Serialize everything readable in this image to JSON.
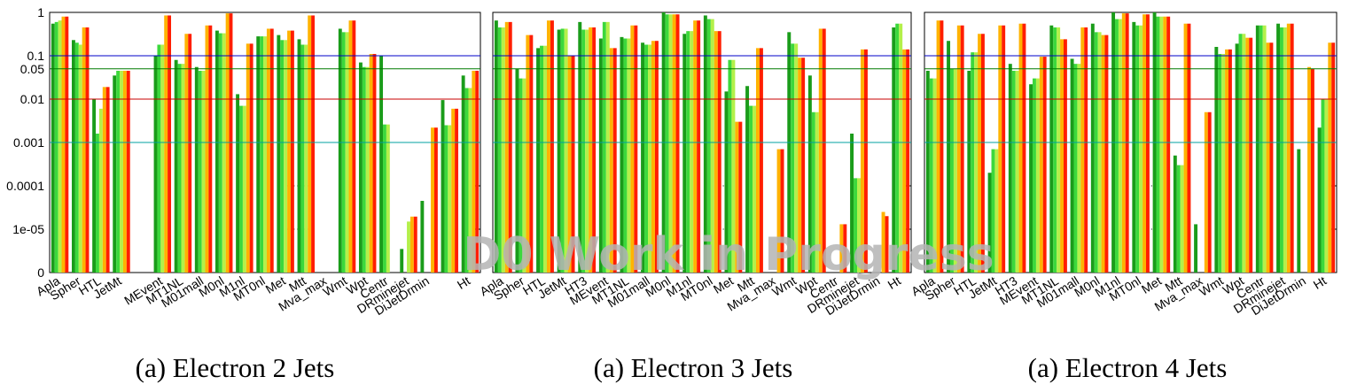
{
  "chart_data": [
    {
      "type": "bar",
      "title": "",
      "caption": "(a) Electron 2 Jets",
      "yscale": "log",
      "ylim": [
        "0",
        1
      ],
      "yticks": [
        "1",
        "0.1",
        "0.05",
        "0.01",
        "0.001",
        "0.0001",
        "1e-05",
        "0"
      ],
      "reference_lines": [
        0.1,
        0.05,
        0.01,
        0.001
      ],
      "series_names": [
        "dark green",
        "green",
        "light green",
        "orange",
        "red"
      ],
      "categories": [
        {
          "label": "Apla",
          "values": [
            0.55,
            0.6,
            0.65,
            0.8,
            0.8
          ]
        },
        {
          "label": "Spher",
          "values": [
            0.23,
            0.2,
            0.18,
            0.45,
            0.45
          ]
        },
        {
          "label": "HTL",
          "values": [
            0.01,
            0.0016,
            0.006,
            0.019,
            0.019
          ]
        },
        {
          "label": "JetMt",
          "values": [
            0.035,
            0.045,
            0.045,
            0.045,
            0.045
          ]
        },
        {
          "label": "",
          "values": [
            0,
            0,
            0,
            0,
            0
          ]
        },
        {
          "label": "MEvent",
          "values": [
            0.1,
            0.18,
            0.18,
            0.85,
            0.85
          ]
        },
        {
          "label": "MT1NL",
          "values": [
            0.08,
            0.065,
            0.065,
            0.32,
            0.32
          ]
        },
        {
          "label": "M01mall",
          "values": [
            0.055,
            0.045,
            0.045,
            0.5,
            0.5
          ]
        },
        {
          "label": "M0nl",
          "values": [
            0.38,
            0.33,
            0.33,
            0.95,
            0.95
          ]
        },
        {
          "label": "M1nl",
          "values": [
            0.013,
            0.007,
            0.007,
            0.19,
            0.19
          ]
        },
        {
          "label": "MT0nl",
          "values": [
            0.28,
            0.28,
            0.28,
            0.42,
            0.42
          ]
        },
        {
          "label": "Met",
          "values": [
            0.3,
            0.23,
            0.23,
            0.38,
            0.38
          ]
        },
        {
          "label": "Mtt",
          "values": [
            0.24,
            0.18,
            0.18,
            0.85,
            0.85
          ]
        },
        {
          "label": "Mva_max",
          "values": [
            0,
            0,
            0,
            0,
            0
          ]
        },
        {
          "label": "Wmt",
          "values": [
            0.42,
            0.35,
            0.35,
            0.65,
            0.65
          ]
        },
        {
          "label": "Wpt",
          "values": [
            0.07,
            0.055,
            0.055,
            0.11,
            0.11
          ]
        },
        {
          "label": "Centr",
          "values": [
            0.1,
            0.0026,
            0.0026,
            0,
            0
          ]
        },
        {
          "label": "DRminejet",
          "values": [
            3.5e-06,
            0,
            1.5e-05,
            1.95e-05,
            1.95e-05
          ]
        },
        {
          "label": "DiJetDrmin",
          "values": [
            4.5e-05,
            0,
            0,
            0.0022,
            0.0022
          ]
        },
        {
          "label": "",
          "values": [
            0.0095,
            0.0025,
            0.0025,
            0.006,
            0.006
          ]
        },
        {
          "label": "Ht",
          "values": [
            0.035,
            0.018,
            0.018,
            0.045,
            0.045
          ]
        }
      ]
    },
    {
      "type": "bar",
      "title": "",
      "caption": "(a) Electron 3 Jets",
      "yscale": "log",
      "ylim": [
        "0",
        1
      ],
      "reference_lines": [
        0.1,
        0.05,
        0.01,
        0.001
      ],
      "series_names": [
        "dark green",
        "green",
        "light green",
        "orange",
        "red"
      ],
      "categories": [
        {
          "label": "Apla",
          "values": [
            0.65,
            0.45,
            0.45,
            0.6,
            0.6
          ]
        },
        {
          "label": "Spher",
          "values": [
            0.05,
            0.03,
            0.03,
            0.3,
            0.3
          ]
        },
        {
          "label": "HTL",
          "values": [
            0.15,
            0.17,
            0.17,
            0.65,
            0.65
          ]
        },
        {
          "label": "JetMt",
          "values": [
            0.4,
            0.42,
            0.42,
            0.1,
            0.1
          ]
        },
        {
          "label": "HT3",
          "values": [
            0.6,
            0.4,
            0.4,
            0.45,
            0.45
          ]
        },
        {
          "label": "MEvent",
          "values": [
            0.25,
            0.6,
            0.6,
            0.15,
            0.15
          ]
        },
        {
          "label": "MT1NL",
          "values": [
            0.27,
            0.25,
            0.25,
            0.5,
            0.5
          ]
        },
        {
          "label": "M01mall",
          "values": [
            0.2,
            0.18,
            0.18,
            0.22,
            0.22
          ]
        },
        {
          "label": "M0nl",
          "values": [
            1,
            0.9,
            0.9,
            0.9,
            0.9
          ]
        },
        {
          "label": "M1nl",
          "values": [
            0.32,
            0.37,
            0.37,
            0.65,
            0.65
          ]
        },
        {
          "label": "MT0nl",
          "values": [
            0.85,
            0.7,
            0.7,
            0.37,
            0.37
          ]
        },
        {
          "label": "Met",
          "values": [
            0.015,
            0.08,
            0.08,
            0.003,
            0.003
          ]
        },
        {
          "label": "Mtt",
          "values": [
            0.02,
            0.007,
            0.007,
            0.15,
            0.15
          ]
        },
        {
          "label": "Mva_max",
          "values": [
            0,
            0,
            0,
            0.0007,
            0.0007
          ]
        },
        {
          "label": "Wmt",
          "values": [
            0.35,
            0.19,
            0.19,
            0.09,
            0.09
          ]
        },
        {
          "label": "Wpt",
          "values": [
            0.035,
            0.005,
            0.005,
            0.42,
            0.42
          ]
        },
        {
          "label": "Centr",
          "values": [
            0,
            0,
            0,
            1.3e-05,
            1.3e-05
          ]
        },
        {
          "label": "DRminejet",
          "values": [
            0.0016,
            0.00015,
            0.00015,
            0.14,
            0.14
          ]
        },
        {
          "label": "DiJetDrmin",
          "values": [
            0,
            0,
            0,
            2.5e-05,
            2e-05
          ]
        },
        {
          "label": "Ht",
          "values": [
            0.45,
            0.55,
            0.55,
            0.14,
            0.14
          ]
        }
      ]
    },
    {
      "type": "bar",
      "title": "",
      "caption": "(a) Electron 4 Jets",
      "yscale": "log",
      "ylim": [
        "0",
        1
      ],
      "reference_lines": [
        0.1,
        0.05,
        0.01,
        0.001
      ],
      "series_names": [
        "dark green",
        "green",
        "light green",
        "orange",
        "red"
      ],
      "categories": [
        {
          "label": "Apla",
          "values": [
            0.045,
            0.03,
            0.03,
            0.65,
            0.65
          ]
        },
        {
          "label": "Spher",
          "values": [
            0.22,
            0.05,
            0.05,
            0.5,
            0.5
          ]
        },
        {
          "label": "HTL",
          "values": [
            0.045,
            0.12,
            0.12,
            0.32,
            0.32
          ]
        },
        {
          "label": "JetMt",
          "values": [
            0.0002,
            0.0007,
            0.0007,
            0.5,
            0.5
          ]
        },
        {
          "label": "HT3",
          "values": [
            0.065,
            0.045,
            0.045,
            0.55,
            0.55
          ]
        },
        {
          "label": "MEvent",
          "values": [
            0.022,
            0.03,
            0.03,
            0.095,
            0.095
          ]
        },
        {
          "label": "MT1NL",
          "values": [
            0.5,
            0.45,
            0.45,
            0.24,
            0.24
          ]
        },
        {
          "label": "M01mall",
          "values": [
            0.085,
            0.065,
            0.065,
            0.45,
            0.45
          ]
        },
        {
          "label": "M0nl",
          "values": [
            0.55,
            0.35,
            0.35,
            0.3,
            0.3
          ]
        },
        {
          "label": "M1nl",
          "values": [
            1,
            0.7,
            0.7,
            0.95,
            0.95
          ]
        },
        {
          "label": "MT0nl",
          "values": [
            0.6,
            0.5,
            0.5,
            0.9,
            0.9
          ]
        },
        {
          "label": "Met",
          "values": [
            1,
            0.8,
            0.8,
            0.8,
            0.8
          ]
        },
        {
          "label": "Mtt",
          "values": [
            0.0005,
            0.0003,
            0.0003,
            0.55,
            0.55
          ]
        },
        {
          "label": "Mva_max",
          "values": [
            1.3e-05,
            0,
            0,
            0.005,
            0.005
          ]
        },
        {
          "label": "Wmt",
          "values": [
            0.16,
            0.11,
            0.11,
            0.14,
            0.14
          ]
        },
        {
          "label": "Wpt",
          "values": [
            0.19,
            0.32,
            0.32,
            0.26,
            0.26
          ]
        },
        {
          "label": "Centr",
          "values": [
            0.5,
            0.5,
            0.5,
            0.2,
            0.2
          ]
        },
        {
          "label": "DRminejet",
          "values": [
            0.55,
            0.45,
            0.45,
            0.55,
            0.55
          ]
        },
        {
          "label": "DiJetDrmin",
          "values": [
            0.0007,
            0,
            0,
            0.055,
            0.05
          ]
        },
        {
          "label": "Ht",
          "values": [
            0.0022,
            0.01,
            0.01,
            0.2,
            0.2
          ]
        }
      ]
    }
  ],
  "colors": {
    "series": [
      "#1a9c1a",
      "#3cd83c",
      "#b4f04a",
      "#ffb300",
      "#ff1e00"
    ],
    "ref_0_1": "#0000c8",
    "ref_0_05": "#007a00",
    "ref_0_01": "#c80000",
    "ref_0_001": "#00a0a0",
    "watermark": "#b4b4b4"
  },
  "watermark": "D0 Work in Progress"
}
